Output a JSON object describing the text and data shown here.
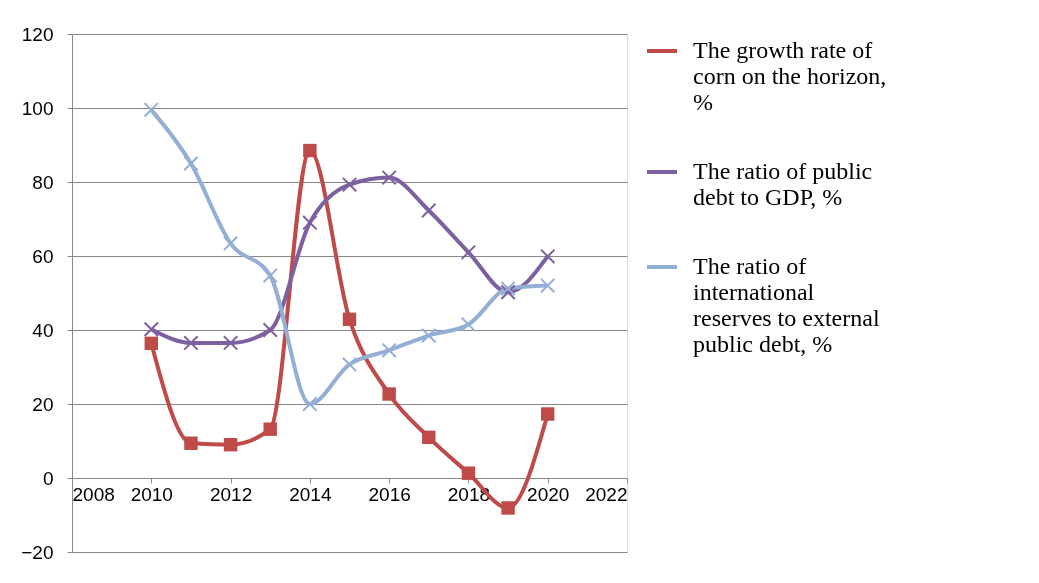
{
  "chart_data": {
    "type": "line",
    "x": [
      2010,
      2011,
      2012,
      2013,
      2014,
      2015,
      2016,
      2017,
      2018,
      2019,
      2020
    ],
    "series": [
      {
        "name": "The growth rate of corn on the horizon, %",
        "color": "#be4b48",
        "marker": "square",
        "values": [
          36.4,
          9.4,
          9,
          13.2,
          88.5,
          42.9,
          22.7,
          11,
          1.3,
          -8.1,
          17.3
        ]
      },
      {
        "name": "The ratio of public debt to GDP, %",
        "color": "#7d60a0",
        "marker": "cross",
        "values": [
          40.2,
          36.5,
          36.5,
          40,
          69,
          79.3,
          81.2,
          72.3,
          61,
          50.2,
          59.9
        ]
      },
      {
        "name": "The ratio of international reserves to external public debt, %",
        "color": "#94afd5",
        "marker": "cross",
        "values": [
          99.5,
          85,
          63.4,
          54.7,
          20,
          30.7,
          34.5,
          38.5,
          41.5,
          51.2,
          52
        ]
      }
    ],
    "xlim": [
      2008,
      2022
    ],
    "xticks": [
      2008,
      2010,
      2012,
      2014,
      2016,
      2018,
      2020,
      2022
    ],
    "ylim": [
      -20,
      120
    ],
    "yticks": [
      -20,
      0,
      20,
      40,
      60,
      80,
      100,
      120
    ],
    "grid": "y",
    "legend": "right",
    "line_style": "solid"
  }
}
